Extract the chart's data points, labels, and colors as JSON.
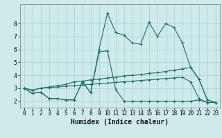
{
  "xlabel": "Humidex (Indice chaleur)",
  "ylabel": "",
  "bg_color": "#ceeaea",
  "grid_color": "#a8d0d0",
  "line_color": "#1a6e64",
  "x_values": [
    0,
    1,
    2,
    3,
    4,
    5,
    6,
    7,
    8,
    9,
    10,
    11,
    12,
    13,
    14,
    15,
    16,
    17,
    18,
    19,
    20,
    21,
    22,
    23
  ],
  "series1": [
    3.0,
    2.6,
    2.7,
    2.2,
    2.2,
    2.1,
    2.1,
    3.5,
    2.65,
    6.0,
    8.8,
    7.3,
    7.1,
    6.5,
    6.4,
    8.1,
    7.0,
    8.0,
    7.7,
    6.5,
    4.6,
    3.7,
    2.1,
    1.9
  ],
  "series2": [
    3.0,
    2.6,
    2.7,
    2.2,
    2.2,
    2.1,
    2.1,
    3.5,
    2.65,
    5.8,
    5.9,
    2.9,
    2.0,
    2.0,
    2.0,
    2.0,
    2.0,
    2.0,
    2.0,
    2.0,
    2.0,
    2.1,
    1.9,
    1.9
  ],
  "series3": [
    3.0,
    2.85,
    3.0,
    3.1,
    3.2,
    3.3,
    3.5,
    3.55,
    3.65,
    3.7,
    3.8,
    3.85,
    3.95,
    4.0,
    4.05,
    4.15,
    4.2,
    4.3,
    4.4,
    4.5,
    4.6,
    3.7,
    2.1,
    1.9
  ],
  "series4": [
    3.0,
    2.85,
    3.0,
    3.05,
    3.1,
    3.15,
    3.2,
    3.25,
    3.3,
    3.35,
    3.4,
    3.45,
    3.5,
    3.55,
    3.6,
    3.65,
    3.7,
    3.75,
    3.8,
    3.85,
    3.5,
    2.2,
    1.9,
    1.9
  ],
  "ylim": [
    1.5,
    9.5
  ],
  "yticks": [
    2,
    3,
    4,
    5,
    6,
    7,
    8
  ],
  "xlim": [
    -0.5,
    23.5
  ],
  "xticks": [
    0,
    1,
    2,
    3,
    4,
    5,
    6,
    7,
    8,
    9,
    10,
    11,
    12,
    13,
    14,
    15,
    16,
    17,
    18,
    19,
    20,
    21,
    22,
    23
  ],
  "xtick_labels": [
    "0",
    "1",
    "2",
    "3",
    "4",
    "5",
    "6",
    "7",
    "8",
    "9",
    "10",
    "11",
    "12",
    "13",
    "14",
    "15",
    "16",
    "17",
    "18",
    "19",
    "20",
    "21",
    "22",
    "23"
  ],
  "tick_fontsize": 5.5,
  "xlabel_fontsize": 7,
  "linewidth": 0.8,
  "markersize": 2.5
}
